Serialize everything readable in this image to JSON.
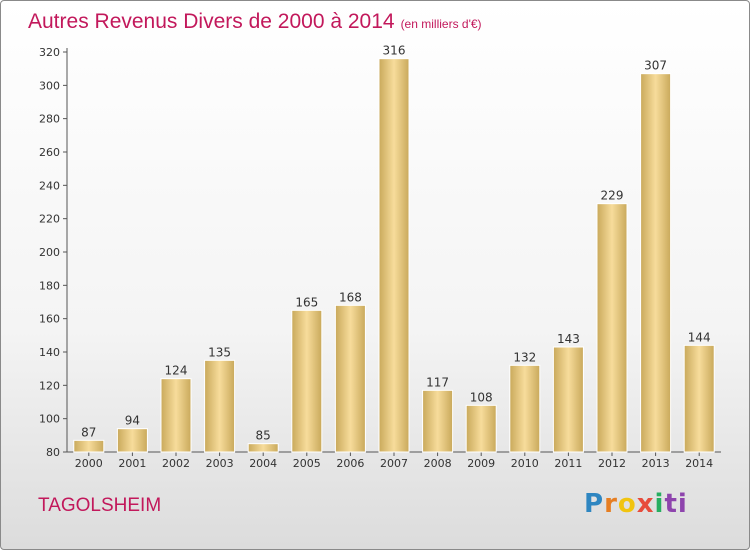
{
  "header": {
    "title": "Autres Revenus Divers de 2000 à 2014",
    "subtitle": "(en milliers d'€)"
  },
  "footer": {
    "location": "TAGOLSHEIM",
    "logo_letters": [
      "P",
      "r",
      "o",
      "x",
      "i",
      "ti"
    ]
  },
  "colors": {
    "accent": "#c2185b",
    "bar_light": "#f7dc9b",
    "bar_dark": "#c9a95b"
  },
  "chart_data": {
    "type": "bar",
    "categories": [
      "2000",
      "2001",
      "2002",
      "2003",
      "2004",
      "2005",
      "2006",
      "2007",
      "2008",
      "2009",
      "2010",
      "2011",
      "2012",
      "2013",
      "2014"
    ],
    "values": [
      87,
      94,
      124,
      135,
      85,
      165,
      168,
      316,
      117,
      108,
      132,
      143,
      229,
      307,
      144
    ],
    "title": "Autres Revenus Divers de 2000 à 2014",
    "subtitle": "(en milliers d'€)",
    "xlabel": "",
    "ylabel": "",
    "ylim": [
      80,
      320
    ],
    "yticks": [
      80,
      100,
      120,
      140,
      160,
      180,
      200,
      220,
      240,
      260,
      280,
      300,
      320
    ],
    "grid": false,
    "legend": "none"
  }
}
